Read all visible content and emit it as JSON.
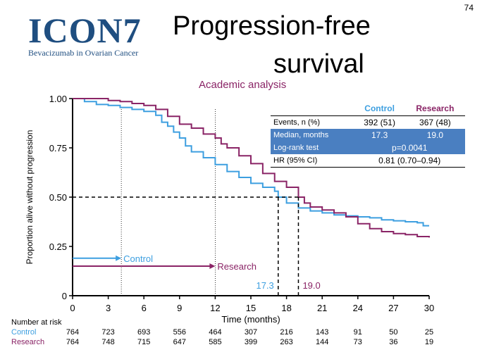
{
  "page_number": "74",
  "logo": {
    "mark": "ICON7",
    "tagline": "Bevacizumab in Ovarian Cancer"
  },
  "title": {
    "line1": "Progression-free",
    "line2": "survival"
  },
  "subtitle": "Academic analysis",
  "colors": {
    "control": "#3d9fe0",
    "research": "#8a2466",
    "logo": "#1f4e80",
    "table_band": "#4a7fc1"
  },
  "stats": {
    "headers": [
      "Control",
      "Research"
    ],
    "rows": [
      {
        "label": "Events, n (%)",
        "control": "392 (51)",
        "research": "367 (48)"
      },
      {
        "label": "Median, months",
        "control": "17.3",
        "research": "19.0"
      },
      {
        "label": "Log-rank test",
        "value": "p=0.0041"
      },
      {
        "label": "HR (95% CI)",
        "value": "0.81 (0.70–0.94)"
      }
    ]
  },
  "risk_table": {
    "header": "Number at risk",
    "rows": [
      {
        "label": "Control",
        "values": [
          "764",
          "723",
          "693",
          "556",
          "464",
          "307",
          "216",
          "143",
          "91",
          "50",
          "25"
        ]
      },
      {
        "label": "Research",
        "values": [
          "764",
          "748",
          "715",
          "647",
          "585",
          "399",
          "263",
          "144",
          "73",
          "36",
          "19"
        ]
      }
    ]
  },
  "chart_data": {
    "type": "line",
    "xlabel": "Time (months)",
    "ylabel": "Proportion alive without progression",
    "xlim": [
      0,
      30
    ],
    "ylim": [
      0,
      1
    ],
    "x_ticks": [
      "0",
      "3",
      "6",
      "9",
      "12",
      "15",
      "18",
      "21",
      "24",
      "27",
      "30"
    ],
    "y_ticks": [
      "0",
      "0.25",
      "0.50",
      "0.75",
      "1.00"
    ],
    "series": [
      {
        "name": "Control",
        "color": "#3d9fe0",
        "points": [
          [
            0,
            1.0
          ],
          [
            1,
            0.985
          ],
          [
            2,
            0.97
          ],
          [
            3,
            0.965
          ],
          [
            4,
            0.955
          ],
          [
            5,
            0.945
          ],
          [
            6,
            0.935
          ],
          [
            7,
            0.915
          ],
          [
            7.5,
            0.88
          ],
          [
            8,
            0.86
          ],
          [
            8.5,
            0.83
          ],
          [
            9,
            0.8
          ],
          [
            9.5,
            0.76
          ],
          [
            10,
            0.73
          ],
          [
            11,
            0.7
          ],
          [
            12,
            0.665
          ],
          [
            13,
            0.63
          ],
          [
            14,
            0.6
          ],
          [
            15,
            0.57
          ],
          [
            16,
            0.55
          ],
          [
            17,
            0.53
          ],
          [
            17.3,
            0.5
          ],
          [
            18,
            0.47
          ],
          [
            19,
            0.445
          ],
          [
            20,
            0.43
          ],
          [
            21,
            0.42
          ],
          [
            22,
            0.41
          ],
          [
            23,
            0.405
          ],
          [
            24,
            0.4
          ],
          [
            25,
            0.395
          ],
          [
            26,
            0.385
          ],
          [
            27,
            0.38
          ],
          [
            28,
            0.375
          ],
          [
            29,
            0.37
          ],
          [
            29.5,
            0.355
          ],
          [
            30,
            0.355
          ]
        ]
      },
      {
        "name": "Research",
        "color": "#8a2466",
        "points": [
          [
            0,
            1.0
          ],
          [
            1.5,
            1.0
          ],
          [
            3,
            0.99
          ],
          [
            4,
            0.985
          ],
          [
            5,
            0.975
          ],
          [
            6,
            0.965
          ],
          [
            7,
            0.945
          ],
          [
            8,
            0.91
          ],
          [
            9,
            0.87
          ],
          [
            10,
            0.85
          ],
          [
            11,
            0.82
          ],
          [
            12,
            0.8
          ],
          [
            12.5,
            0.77
          ],
          [
            13,
            0.75
          ],
          [
            14,
            0.71
          ],
          [
            15,
            0.67
          ],
          [
            16,
            0.62
          ],
          [
            17,
            0.58
          ],
          [
            18,
            0.55
          ],
          [
            19,
            0.5
          ],
          [
            19.5,
            0.47
          ],
          [
            20,
            0.45
          ],
          [
            21,
            0.435
          ],
          [
            22,
            0.42
          ],
          [
            23,
            0.4
          ],
          [
            24,
            0.365
          ],
          [
            25,
            0.34
          ],
          [
            26,
            0.325
          ],
          [
            27,
            0.315
          ],
          [
            28,
            0.31
          ],
          [
            29,
            0.3
          ],
          [
            30,
            0.295
          ]
        ]
      }
    ],
    "medians": [
      {
        "name": "Control",
        "x": 17.3,
        "label": "17.3"
      },
      {
        "name": "Research",
        "x": 19.0,
        "label": "19.0"
      }
    ],
    "median_arrows": [
      {
        "name": "Control",
        "label": "Control",
        "y": 0.19,
        "x_end": 4.1
      },
      {
        "name": "Research",
        "label": "Research",
        "y": 0.15,
        "x_end": 12.0
      }
    ],
    "reference_verticals": [
      4.1,
      12.0
    ],
    "median_y": 0.5
  }
}
